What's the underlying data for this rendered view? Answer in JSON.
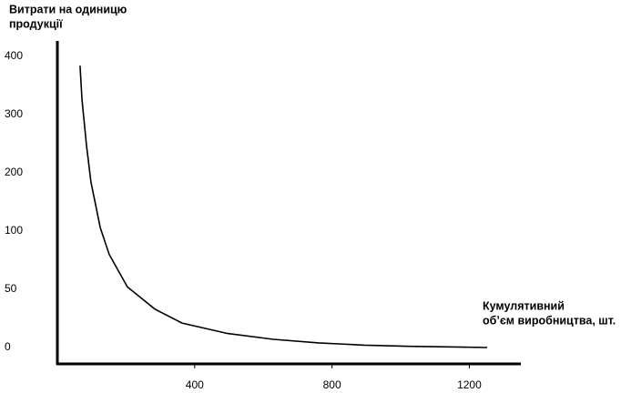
{
  "chart_data": {
    "type": "line",
    "ylabel": [
      "Витрати на одиницю",
      "продукції"
    ],
    "xlabel": [
      "Кумулятивний",
      "обʼєм виробництва, шт."
    ],
    "x": [
      66,
      72,
      85,
      98,
      125,
      151,
      204,
      284,
      363,
      496,
      629,
      761,
      894,
      1026,
      1252
    ],
    "values": [
      384,
      325,
      247,
      184,
      106,
      80,
      52,
      33,
      21,
      12,
      7,
      4,
      2,
      1,
      0
    ],
    "color": "#000000",
    "xlim": [
      0,
      1350
    ],
    "xticks": [
      400,
      800,
      1200
    ],
    "ylim": [
      -14,
      427
    ],
    "yticks": [
      0,
      50,
      100,
      200,
      300,
      400
    ],
    "grid": false
  }
}
